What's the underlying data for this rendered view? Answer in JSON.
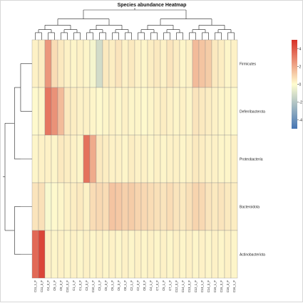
{
  "chart_data": {
    "type": "heatmap",
    "title": "Species abundance Heatmap",
    "rows": [
      "Firmicutes",
      "Deferribacterota",
      "Proteobacteria",
      "Bacteroidota",
      "Actinobacteriota"
    ],
    "columns": [
      "C11_1_F",
      "C11_3_F",
      "C4_3_F",
      "C9_1_F",
      "C9_3_F",
      "C10_3_F",
      "C1_1_F",
      "C1_3_F",
      "C3_3_F",
      "C10_1_F",
      "C3_1_F",
      "C5_3_F",
      "C6_1_F",
      "C6_3_F",
      "C8_1_F",
      "C2_1_F",
      "C2_3_F",
      "C8_3_F",
      "C4_1_F",
      "C7_3_F",
      "C5_1_F",
      "C7_1_F",
      "C12_3_F",
      "C14_1_F",
      "C13_3_F",
      "C12_1_F",
      "C13_1_F",
      "C14_3_F",
      "C15_1_F",
      "C15_3_F",
      "C16_3_F",
      "C16_1_F"
    ],
    "values": [
      [
        0.3,
        0.4,
        2.5,
        0.8,
        0.5,
        0.3,
        0.2,
        0.3,
        0.2,
        -0.3,
        -1.2,
        0.5,
        0.4,
        0.6,
        0.3,
        0.5,
        0.3,
        0.2,
        0.4,
        0.5,
        0.3,
        0.6,
        0.4,
        0.2,
        0.3,
        1.6,
        1.4,
        1.2,
        0.5,
        0.4,
        0.2,
        0.3
      ],
      [
        0.1,
        0.2,
        3.3,
        2.6,
        1.6,
        0.5,
        0.4,
        0.3,
        0.3,
        0.2,
        0.1,
        0.2,
        0.3,
        0.2,
        0.3,
        0.2,
        0.2,
        0.1,
        0.2,
        0.3,
        0.4,
        0.3,
        0.2,
        0.3,
        0.2,
        0.6,
        0.5,
        0.4,
        0.3,
        0.2,
        0.2,
        0.1
      ],
      [
        0.2,
        0.3,
        0.3,
        0.2,
        0.5,
        0.4,
        0.3,
        0.2,
        3.4,
        2.0,
        0.5,
        0.4,
        0.3,
        0.3,
        0.2,
        0.4,
        0.3,
        0.3,
        0.2,
        0.3,
        0.2,
        0.3,
        0.3,
        0.2,
        0.3,
        0.5,
        0.4,
        0.3,
        0.3,
        0.2,
        0.2,
        0.3
      ],
      [
        0.6,
        0.7,
        -0.2,
        0.1,
        0.2,
        0.3,
        0.4,
        0.5,
        0.3,
        0.8,
        0.9,
        0.8,
        1.4,
        1.3,
        1.1,
        1.2,
        1.0,
        0.9,
        0.8,
        0.7,
        0.6,
        0.8,
        0.6,
        0.5,
        0.7,
        1.0,
        0.9,
        0.6,
        0.5,
        0.6,
        0.5,
        0.4
      ],
      [
        3.6,
        4.5,
        0.3,
        0.2,
        0.3,
        0.2,
        0.3,
        0.2,
        0.3,
        0.2,
        0.3,
        0.2,
        0.3,
        0.2,
        0.3,
        0.2,
        0.3,
        0.2,
        0.3,
        0.2,
        0.3,
        0.2,
        0.3,
        0.2,
        0.3,
        0.2,
        0.3,
        0.2,
        0.3,
        0.2,
        0.3,
        0.2
      ]
    ],
    "legend": {
      "ticks": [
        4,
        2,
        0,
        -2,
        -4
      ],
      "range": [
        -5,
        5
      ],
      "colors": [
        "#4575b4",
        "#fffdd0",
        "#d73027"
      ],
      "placement": "right"
    }
  }
}
